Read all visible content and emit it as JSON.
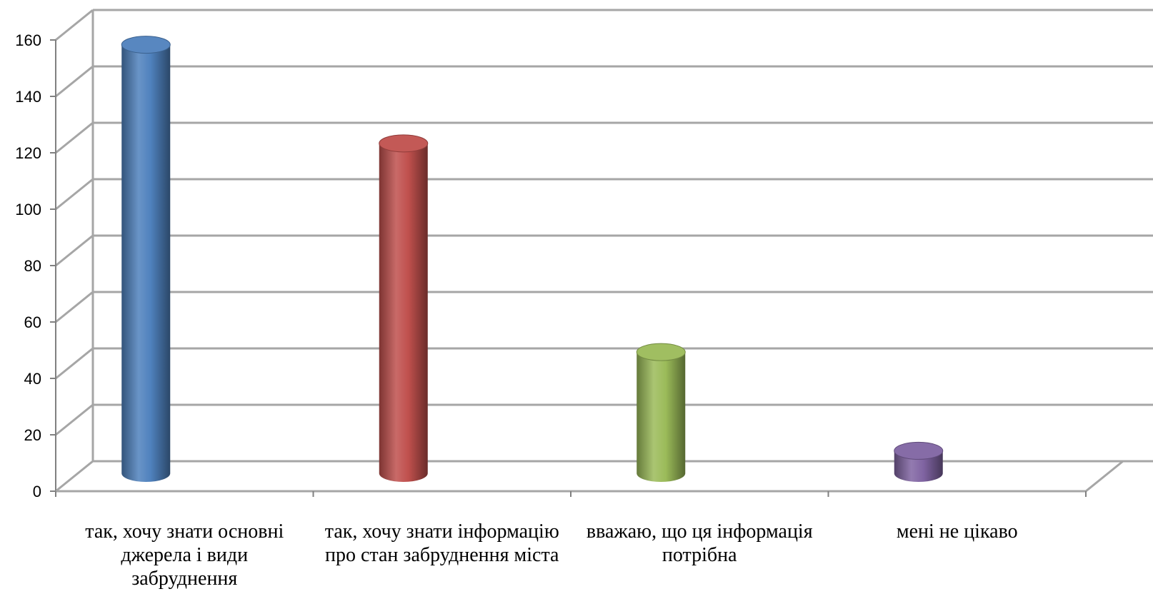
{
  "chart_data": {
    "type": "bar",
    "style": "3d-cylinder",
    "title": "",
    "xlabel": "",
    "ylabel": "",
    "ylim": [
      0,
      160
    ],
    "yticks": [
      "0",
      "20",
      "40",
      "60",
      "80",
      "100",
      "120",
      "140",
      "160"
    ],
    "grid": true,
    "legend": "none",
    "categories": [
      "так, хочу знати основні джерела і види забруднення",
      "так, хочу знати інформацію про стан забруднення міста",
      "вважаю, що ця інформація потрібна",
      "мені не цікаво"
    ],
    "values": [
      152,
      117,
      43,
      8
    ],
    "colors": [
      "#4F81BD",
      "#C0504D",
      "#9BBB59",
      "#8064A2"
    ]
  }
}
